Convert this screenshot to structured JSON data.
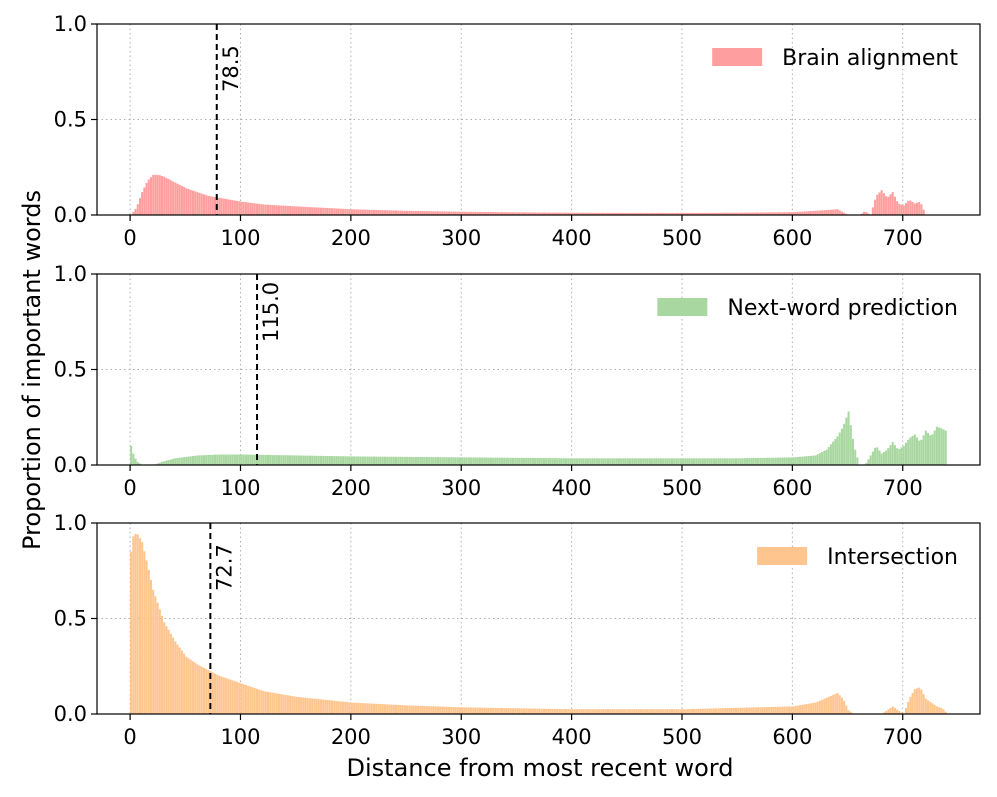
{
  "chart_data": [
    {
      "type": "bar",
      "legend": "Brain alignment",
      "legend_location": "upper-right",
      "color": "#ff9e9e",
      "vline": {
        "x": 78.5,
        "label": "78.5"
      },
      "xlim": [
        -30,
        770
      ],
      "ylim": [
        0,
        1.0
      ],
      "xticks": [
        0,
        100,
        200,
        300,
        400,
        500,
        600,
        700
      ],
      "xtick_labels": [
        "0",
        "100",
        "200",
        "300",
        "400",
        "500",
        "600",
        "700"
      ],
      "yticks": [
        0,
        0.5,
        1.0
      ],
      "ytick_labels": [
        "0.0",
        "0.5",
        "1.0"
      ],
      "grid": true,
      "x": [
        0,
        5,
        10,
        15,
        20,
        25,
        30,
        40,
        50,
        60,
        70,
        80,
        100,
        120,
        150,
        200,
        250,
        300,
        350,
        400,
        450,
        500,
        550,
        600,
        620,
        640,
        650,
        660,
        665,
        670,
        675,
        680,
        685,
        690,
        695,
        700,
        705,
        710,
        715,
        720
      ],
      "values": [
        0.0,
        0.04,
        0.12,
        0.18,
        0.21,
        0.21,
        0.2,
        0.17,
        0.14,
        0.12,
        0.1,
        0.09,
        0.07,
        0.055,
        0.045,
        0.03,
        0.022,
        0.017,
        0.014,
        0.012,
        0.011,
        0.011,
        0.012,
        0.015,
        0.022,
        0.03,
        0.0,
        0.0,
        0.02,
        0.0,
        0.1,
        0.13,
        0.09,
        0.12,
        0.06,
        0.05,
        0.08,
        0.06,
        0.07,
        0.0
      ]
    },
    {
      "type": "bar",
      "legend": "Next-word prediction",
      "legend_location": "upper-right",
      "color": "#a8d8a0",
      "vline": {
        "x": 115.0,
        "label": "115.0"
      },
      "xlim": [
        -30,
        770
      ],
      "ylim": [
        0,
        1.0
      ],
      "xticks": [
        0,
        100,
        200,
        300,
        400,
        500,
        600,
        700
      ],
      "xtick_labels": [
        "0",
        "100",
        "200",
        "300",
        "400",
        "500",
        "600",
        "700"
      ],
      "yticks": [
        0,
        0.5,
        1.0
      ],
      "ytick_labels": [
        "0.0",
        "0.5",
        "1.0"
      ],
      "grid": true,
      "x": [
        0,
        2,
        5,
        10,
        20,
        30,
        40,
        60,
        80,
        100,
        150,
        200,
        300,
        400,
        500,
        550,
        600,
        620,
        630,
        640,
        645,
        650,
        655,
        660,
        665,
        670,
        675,
        680,
        685,
        690,
        695,
        700,
        705,
        710,
        715,
        720,
        725,
        730,
        735,
        738
      ],
      "values": [
        0.1,
        0.06,
        0.02,
        0.0,
        0.0,
        0.02,
        0.035,
        0.05,
        0.055,
        0.055,
        0.05,
        0.045,
        0.04,
        0.035,
        0.035,
        0.035,
        0.04,
        0.05,
        0.08,
        0.15,
        0.2,
        0.28,
        0.1,
        0.0,
        0.0,
        0.05,
        0.1,
        0.06,
        0.08,
        0.12,
        0.08,
        0.1,
        0.14,
        0.16,
        0.12,
        0.18,
        0.15,
        0.2,
        0.19,
        0.18
      ]
    },
    {
      "type": "bar",
      "legend": "Intersection",
      "legend_location": "upper-right",
      "color": "#ffc58e",
      "vline": {
        "x": 72.7,
        "label": "72.7"
      },
      "xlim": [
        -30,
        770
      ],
      "ylim": [
        0,
        1.0
      ],
      "xticks": [
        0,
        100,
        200,
        300,
        400,
        500,
        600,
        700
      ],
      "xtick_labels": [
        "0",
        "100",
        "200",
        "300",
        "400",
        "500",
        "600",
        "700"
      ],
      "yticks": [
        0,
        0.5,
        1.0
      ],
      "ytick_labels": [
        "0.0",
        "0.5",
        "1.0"
      ],
      "grid": true,
      "x": [
        0,
        2,
        5,
        10,
        15,
        20,
        30,
        40,
        50,
        60,
        70,
        80,
        100,
        120,
        150,
        200,
        250,
        300,
        350,
        400,
        500,
        600,
        620,
        640,
        645,
        650,
        655,
        660,
        680,
        690,
        700,
        705,
        710,
        715,
        720,
        725,
        730,
        735,
        740
      ],
      "values": [
        0.85,
        0.93,
        0.95,
        0.9,
        0.78,
        0.65,
        0.48,
        0.38,
        0.3,
        0.26,
        0.23,
        0.2,
        0.16,
        0.12,
        0.09,
        0.06,
        0.045,
        0.035,
        0.03,
        0.025,
        0.025,
        0.04,
        0.06,
        0.11,
        0.08,
        0.02,
        0.0,
        0.0,
        0.0,
        0.04,
        0.0,
        0.08,
        0.13,
        0.14,
        0.08,
        0.06,
        0.04,
        0.03,
        0.0
      ]
    }
  ],
  "axes_labels": {
    "ylabel": "Proportion of important words",
    "xlabel": "Distance from most recent word"
  }
}
